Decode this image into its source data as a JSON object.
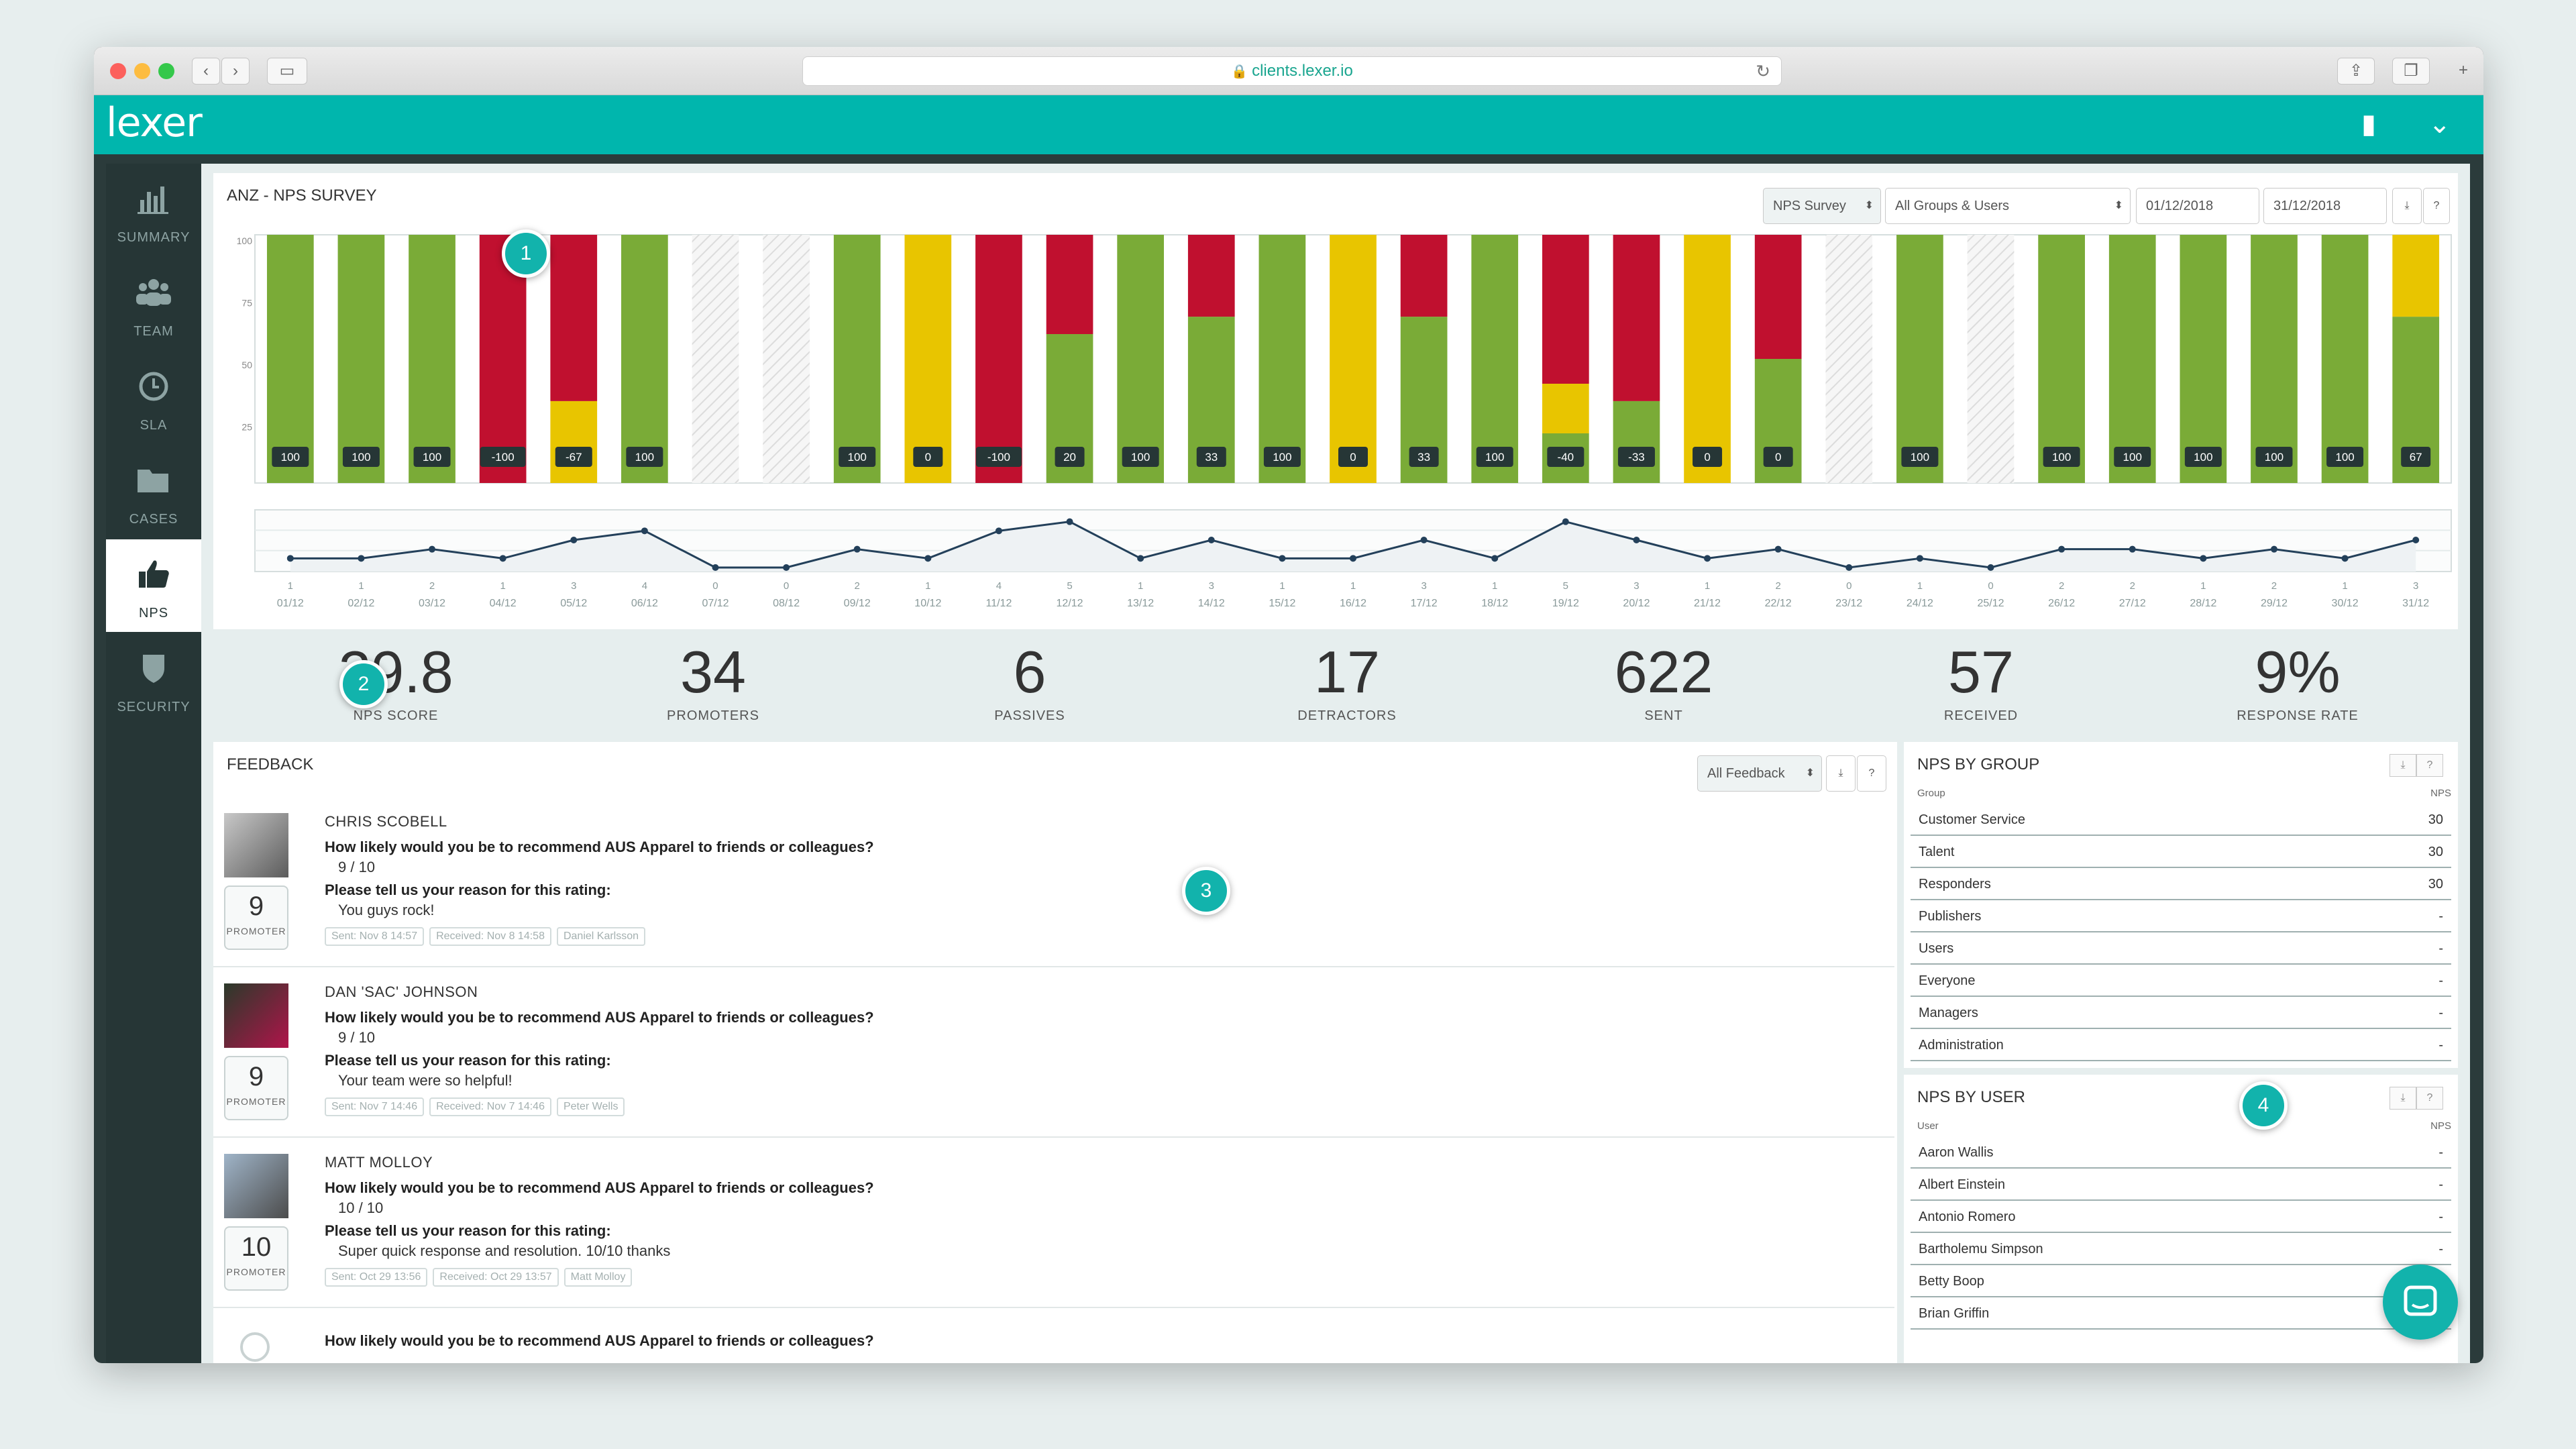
{
  "browser": {
    "url": "clients.lexer.io"
  },
  "app": {
    "logo": "lexer"
  },
  "sidebar": {
    "items": [
      {
        "label": "SUMMARY",
        "icon": "bar-chart-icon",
        "active": false
      },
      {
        "label": "TEAM",
        "icon": "team-icon",
        "active": false
      },
      {
        "label": "SLA",
        "icon": "clock-icon",
        "active": false
      },
      {
        "label": "CASES",
        "icon": "folder-icon",
        "active": false
      },
      {
        "label": "NPS",
        "icon": "thumbs-up-icon",
        "active": true
      },
      {
        "label": "SECURITY",
        "icon": "shield-icon",
        "active": false
      }
    ]
  },
  "survey": {
    "title": "ANZ - NPS SURVEY",
    "survey_select": "NPS Survey",
    "group_select": "All Groups & Users",
    "date_from": "01/12/2018",
    "date_to": "31/12/2018",
    "download_label": "⤓",
    "help_label": "?"
  },
  "callouts": {
    "c1": "1",
    "c2": "2",
    "c3": "3",
    "c4": "4"
  },
  "chart_data": {
    "type": "bar",
    "y_ticks": [
      "100",
      "75",
      "50",
      "25"
    ],
    "ylim": [
      0,
      100
    ],
    "categories": [
      "01/12",
      "02/12",
      "03/12",
      "04/12",
      "05/12",
      "06/12",
      "07/12",
      "08/12",
      "09/12",
      "10/12",
      "11/12",
      "12/12",
      "13/12",
      "14/12",
      "15/12",
      "16/12",
      "17/12",
      "18/12",
      "19/12",
      "20/12",
      "21/12",
      "22/12",
      "23/12",
      "24/12",
      "25/12",
      "26/12",
      "27/12",
      "28/12",
      "29/12",
      "30/12",
      "31/12"
    ],
    "nps_values": [
      "100",
      "100",
      "100",
      "-100",
      "-67",
      "100",
      "",
      "",
      "100",
      "0",
      "-100",
      "20",
      "100",
      "33",
      "100",
      "0",
      "33",
      "100",
      "-40",
      "-33",
      "0",
      "0",
      "",
      "100",
      "",
      "100",
      "100",
      "100",
      "100",
      "100",
      "67"
    ],
    "series": [
      {
        "name": "promoters",
        "color": "#7aab37",
        "values": [
          100,
          100,
          100,
          0,
          0,
          100,
          0,
          0,
          100,
          0,
          0,
          60,
          100,
          67,
          100,
          0,
          67,
          100,
          20,
          33,
          0,
          50,
          0,
          100,
          0,
          100,
          100,
          100,
          100,
          100,
          67
        ]
      },
      {
        "name": "passives",
        "color": "#e8c500",
        "values": [
          0,
          0,
          0,
          0,
          33,
          0,
          0,
          0,
          0,
          100,
          0,
          0,
          0,
          0,
          0,
          100,
          0,
          0,
          20,
          0,
          100,
          0,
          0,
          0,
          0,
          0,
          0,
          0,
          0,
          0,
          33
        ]
      },
      {
        "name": "detractors",
        "color": "#c0102f",
        "values": [
          0,
          0,
          0,
          100,
          67,
          0,
          0,
          0,
          0,
          0,
          100,
          40,
          0,
          33,
          0,
          0,
          33,
          0,
          60,
          67,
          0,
          50,
          0,
          0,
          0,
          0,
          0,
          0,
          0,
          0,
          0
        ]
      }
    ],
    "no_data_days": [
      "07/12",
      "08/12",
      "23/12",
      "25/12"
    ],
    "responses": [
      1,
      1,
      2,
      1,
      3,
      4,
      0,
      0,
      2,
      1,
      4,
      5,
      1,
      3,
      1,
      1,
      3,
      1,
      5,
      3,
      1,
      2,
      0,
      1,
      0,
      2,
      2,
      1,
      2,
      1,
      3
    ],
    "colors": {
      "line": "#23405a",
      "label_bg": "#263636"
    }
  },
  "kpis": [
    {
      "value": "29.8",
      "label": "NPS SCORE"
    },
    {
      "value": "34",
      "label": "PROMOTERS"
    },
    {
      "value": "6",
      "label": "PASSIVES"
    },
    {
      "value": "17",
      "label": "DETRACTORS"
    },
    {
      "value": "622",
      "label": "SENT"
    },
    {
      "value": "57",
      "label": "RECEIVED"
    },
    {
      "value": "9%",
      "label": "RESPONSE RATE"
    }
  ],
  "feedback": {
    "title": "FEEDBACK",
    "filter": "All Feedback",
    "entries": [
      {
        "name": "CHRIS SCOBELL",
        "question": "How likely would you be to recommend AUS Apparel to friends or colleagues?",
        "score_text": "9 / 10",
        "reason_q": "Please tell us your reason for this rating:",
        "reason": "You guys rock!",
        "score": "9",
        "category": "PROMOTER",
        "sent": "Sent: Nov 8 14:57",
        "received": "Received: Nov 8 14:58",
        "agent": "Daniel Karlsson"
      },
      {
        "name": "DAN 'SAC' JOHNSON",
        "question": "How likely would you be to recommend AUS Apparel to friends or colleagues?",
        "score_text": "9 / 10",
        "reason_q": "Please tell us your reason for this rating:",
        "reason": "Your team were so helpful!",
        "score": "9",
        "category": "PROMOTER",
        "sent": "Sent: Nov 7 14:46",
        "received": "Received: Nov 7 14:46",
        "agent": "Peter Wells"
      },
      {
        "name": "MATT MOLLOY",
        "question": "How likely would you be to recommend AUS Apparel to friends or colleagues?",
        "score_text": "10 / 10",
        "reason_q": "Please tell us your reason for this rating:",
        "reason": "Super quick response and resolution. 10/10 thanks",
        "score": "10",
        "category": "PROMOTER",
        "sent": "Sent: Oct 29 13:56",
        "received": "Received: Oct 29 13:57",
        "agent": "Matt Molloy"
      }
    ],
    "partial_question": "How likely would you be to recommend AUS Apparel to friends or colleagues?"
  },
  "nps_by_group": {
    "title": "NPS BY GROUP",
    "col_name": "Group",
    "col_value": "NPS",
    "rows": [
      {
        "name": "Customer Service",
        "value": "30"
      },
      {
        "name": "Talent",
        "value": "30"
      },
      {
        "name": "Responders",
        "value": "30"
      },
      {
        "name": "Publishers",
        "value": "-"
      },
      {
        "name": "Users",
        "value": "-"
      },
      {
        "name": "Everyone",
        "value": "-"
      },
      {
        "name": "Managers",
        "value": "-"
      },
      {
        "name": "Administration",
        "value": "-"
      }
    ]
  },
  "nps_by_user": {
    "title": "NPS BY USER",
    "col_name": "User",
    "col_value": "NPS",
    "rows": [
      {
        "name": "Aaron Wallis",
        "value": "-"
      },
      {
        "name": "Albert Einstein",
        "value": "-"
      },
      {
        "name": "Antonio Romero",
        "value": "-"
      },
      {
        "name": "Bartholemu Simpson",
        "value": "-"
      },
      {
        "name": "Betty Boop",
        "value": "-"
      },
      {
        "name": "Brian Griffin",
        "value": "-"
      }
    ]
  }
}
